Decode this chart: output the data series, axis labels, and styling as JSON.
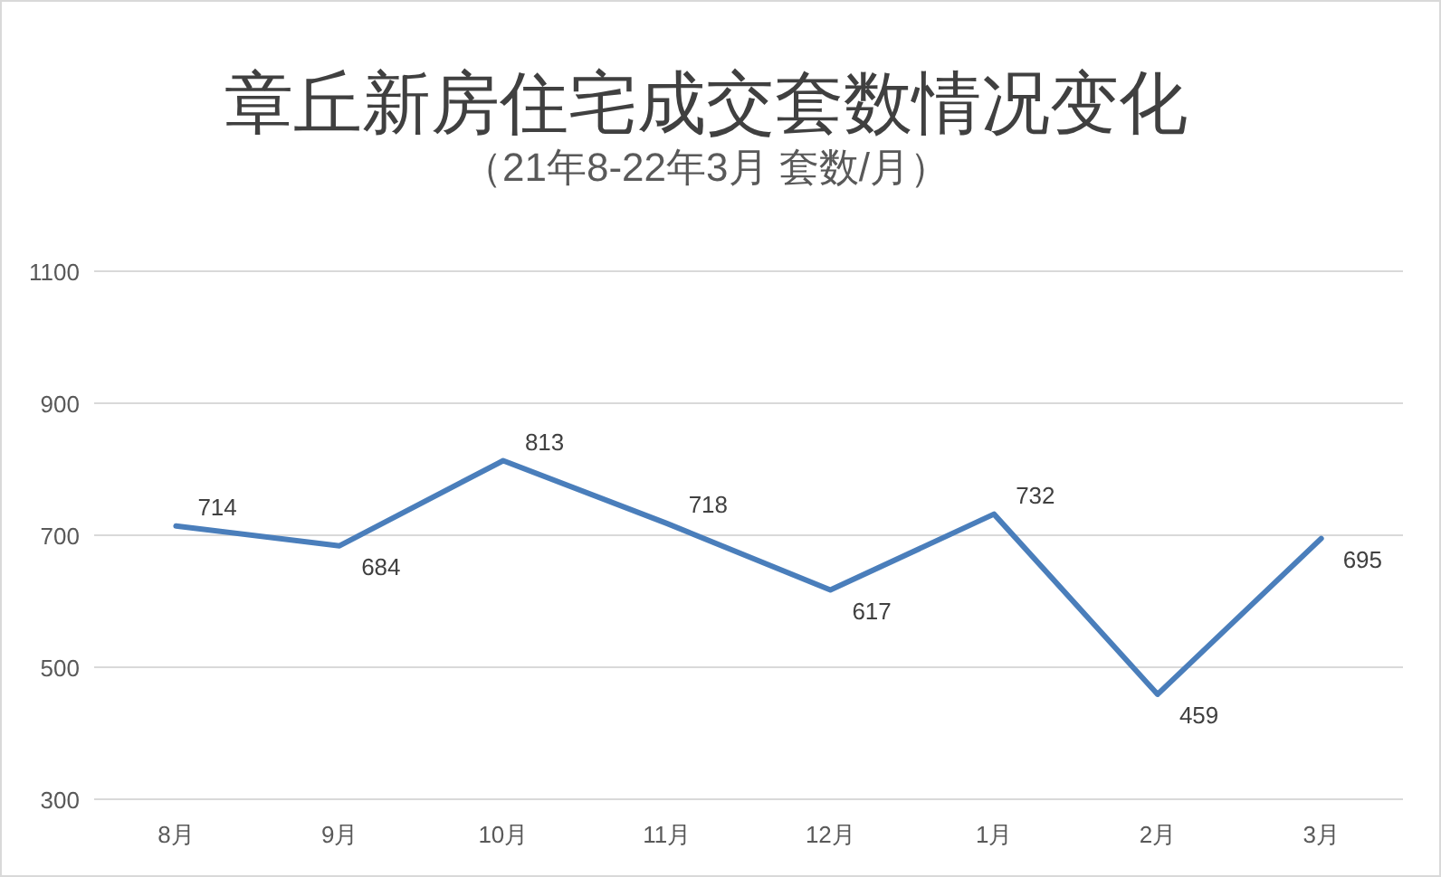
{
  "chart_data": {
    "type": "line",
    "title": "章丘新房住宅成交套数情况变化",
    "subtitle": "（21年8-22年3月 套数/月）",
    "categories": [
      "8月",
      "9月",
      "10月",
      "11月",
      "12月",
      "1月",
      "2月",
      "3月"
    ],
    "series": [
      {
        "color": "#4a7ebb",
        "values": [
          714,
          684,
          813,
          718,
          617,
          732,
          459,
          695
        ]
      }
    ],
    "ylim": [
      300,
      1100
    ],
    "yticks": [
      300,
      500,
      700,
      900,
      1100
    ],
    "grid": "y",
    "data_labels": true,
    "marker": "none",
    "line_style": "solid"
  }
}
